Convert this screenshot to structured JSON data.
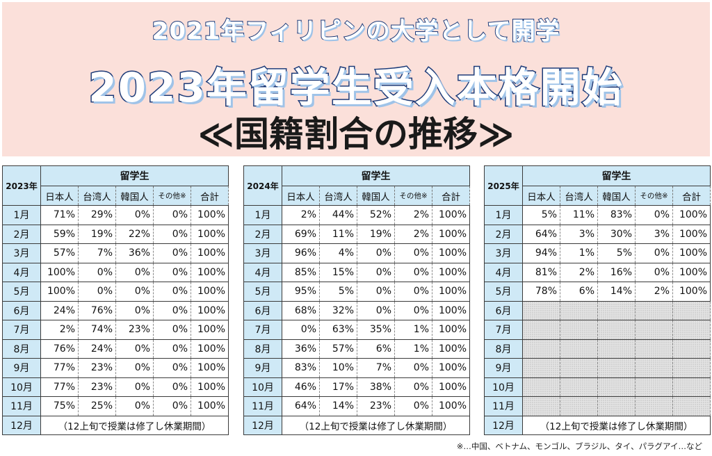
{
  "header": {
    "line1": "2021年フィリピンの大学として開学",
    "line2": "2023年留学生受入本格開始",
    "line3": "≪国籍割合の推移≫"
  },
  "columns": {
    "group": "留学生",
    "japanese": "日本人",
    "taiwanese": "台湾人",
    "korean": "韓国人",
    "other": "その他※",
    "total": "合計"
  },
  "months": [
    "1月",
    "2月",
    "3月",
    "4月",
    "5月",
    "6月",
    "7月",
    "8月",
    "9月",
    "10月",
    "11月",
    "12月"
  ],
  "note_row": "（12上旬で授業は修了し休業期間）",
  "tables": [
    {
      "year": "2023年",
      "rows": [
        [
          "71%",
          "29%",
          "0%",
          "0%",
          "100%"
        ],
        [
          "59%",
          "19%",
          "22%",
          "0%",
          "100%"
        ],
        [
          "57%",
          "7%",
          "36%",
          "0%",
          "100%"
        ],
        [
          "100%",
          "0%",
          "0%",
          "0%",
          "100%"
        ],
        [
          "100%",
          "0%",
          "0%",
          "0%",
          "100%"
        ],
        [
          "24%",
          "76%",
          "0%",
          "0%",
          "100%"
        ],
        [
          "2%",
          "74%",
          "23%",
          "0%",
          "100%"
        ],
        [
          "76%",
          "24%",
          "0%",
          "0%",
          "100%"
        ],
        [
          "77%",
          "23%",
          "0%",
          "0%",
          "100%"
        ],
        [
          "77%",
          "23%",
          "0%",
          "0%",
          "100%"
        ],
        [
          "75%",
          "25%",
          "0%",
          "0%",
          "100%"
        ]
      ]
    },
    {
      "year": "2024年",
      "rows": [
        [
          "2%",
          "44%",
          "52%",
          "2%",
          "100%"
        ],
        [
          "69%",
          "11%",
          "19%",
          "2%",
          "100%"
        ],
        [
          "96%",
          "4%",
          "0%",
          "0%",
          "100%"
        ],
        [
          "85%",
          "15%",
          "0%",
          "0%",
          "100%"
        ],
        [
          "95%",
          "5%",
          "0%",
          "0%",
          "100%"
        ],
        [
          "68%",
          "32%",
          "0%",
          "0%",
          "100%"
        ],
        [
          "0%",
          "63%",
          "35%",
          "1%",
          "100%"
        ],
        [
          "36%",
          "57%",
          "6%",
          "1%",
          "100%"
        ],
        [
          "83%",
          "10%",
          "7%",
          "0%",
          "100%"
        ],
        [
          "46%",
          "17%",
          "38%",
          "0%",
          "100%"
        ],
        [
          "64%",
          "14%",
          "23%",
          "0%",
          "100%"
        ]
      ]
    },
    {
      "year": "2025年",
      "rows": [
        [
          "5%",
          "11%",
          "83%",
          "0%",
          "100%"
        ],
        [
          "64%",
          "3%",
          "30%",
          "3%",
          "100%"
        ],
        [
          "94%",
          "1%",
          "5%",
          "0%",
          "100%"
        ],
        [
          "81%",
          "2%",
          "16%",
          "0%",
          "100%"
        ],
        [
          "78%",
          "6%",
          "14%",
          "2%",
          "100%"
        ]
      ]
    }
  ],
  "footnote": "※…中国、ベトナム、モンゴル、ブラジル、タイ、パラグアイ…など"
}
